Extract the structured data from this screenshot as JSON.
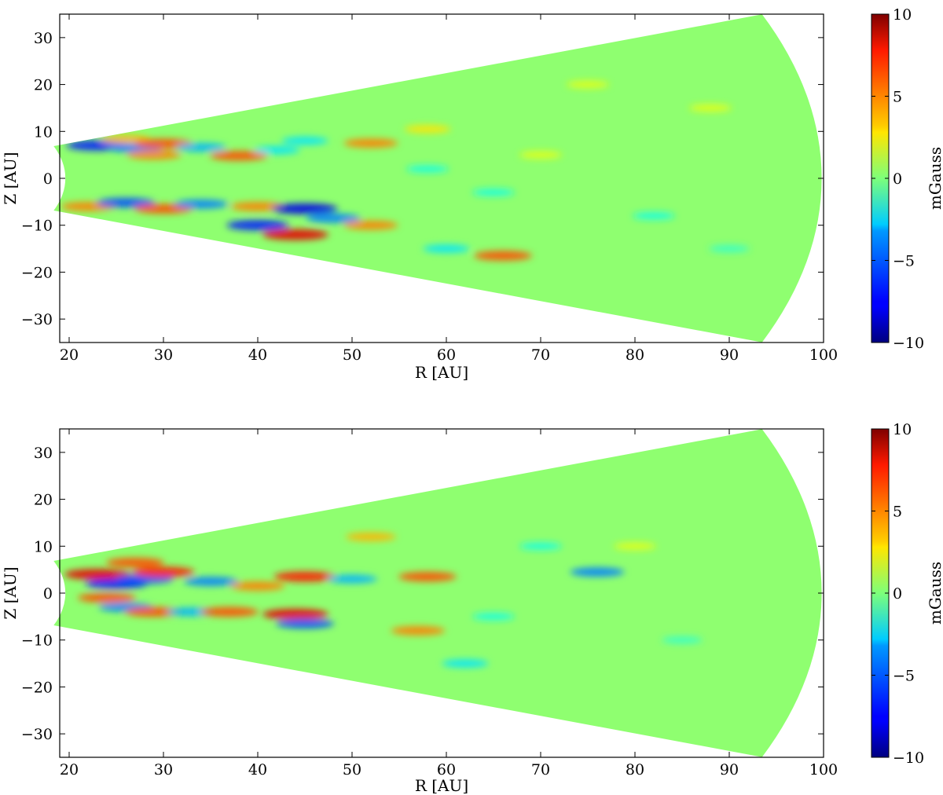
{
  "chart_data": [
    {
      "type": "heatmap",
      "panel": "top",
      "xlabel": "R [AU]",
      "ylabel": "Z [AU]",
      "xlim": [
        19,
        100
      ],
      "ylim": [
        -35,
        35
      ],
      "xticks": [
        20,
        30,
        40,
        50,
        60,
        70,
        80,
        90,
        100
      ],
      "yticks": [
        -30,
        -20,
        -10,
        0,
        10,
        20,
        30
      ],
      "domain": {
        "r_inner_AU": 19.6,
        "r_outer_AU": 99.8,
        "half_opening_angle_deg": 20.5
      },
      "colorbar": {
        "label": "mGauss",
        "range": [
          -10,
          10
        ],
        "ticks": [
          -10,
          -5,
          0,
          5,
          10
        ],
        "colormap": "jet"
      },
      "features": [
        {
          "R": 23,
          "Z": 7.0,
          "B": -7
        },
        {
          "R": 27,
          "Z": 6.5,
          "B": -5
        },
        {
          "R": 26,
          "Z": 8.3,
          "B": 4
        },
        {
          "R": 30,
          "Z": 7.4,
          "B": 6
        },
        {
          "R": 29,
          "Z": 5.0,
          "B": 5
        },
        {
          "R": 34,
          "Z": 6.6,
          "B": -4
        },
        {
          "R": 38,
          "Z": 4.8,
          "B": 6
        },
        {
          "R": 42,
          "Z": 6.0,
          "B": -3
        },
        {
          "R": 45,
          "Z": 8.0,
          "B": -3
        },
        {
          "R": 52,
          "Z": 7.5,
          "B": 5
        },
        {
          "R": 58,
          "Z": 10.5,
          "B": 3
        },
        {
          "R": 22,
          "Z": -6.0,
          "B": 5
        },
        {
          "R": 26,
          "Z": -5.2,
          "B": -6
        },
        {
          "R": 30,
          "Z": -6.5,
          "B": 6
        },
        {
          "R": 34,
          "Z": -5.5,
          "B": -5
        },
        {
          "R": 40,
          "Z": -6.0,
          "B": 5
        },
        {
          "R": 45,
          "Z": -6.5,
          "B": -8
        },
        {
          "R": 40,
          "Z": -10.0,
          "B": -7
        },
        {
          "R": 44,
          "Z": -12.0,
          "B": 8
        },
        {
          "R": 48,
          "Z": -8.5,
          "B": -5
        },
        {
          "R": 52,
          "Z": -10.0,
          "B": 5
        },
        {
          "R": 60,
          "Z": -15.0,
          "B": -3
        },
        {
          "R": 66,
          "Z": -16.5,
          "B": 6
        },
        {
          "R": 58,
          "Z": 2.0,
          "B": -2
        },
        {
          "R": 70,
          "Z": 5.0,
          "B": 2
        },
        {
          "R": 75,
          "Z": 20.0,
          "B": 2
        },
        {
          "R": 82,
          "Z": -8.0,
          "B": -2
        },
        {
          "R": 88,
          "Z": 15.0,
          "B": 2
        },
        {
          "R": 90,
          "Z": -15.0,
          "B": -1.5
        },
        {
          "R": 65,
          "Z": -3.0,
          "B": -2
        }
      ]
    },
    {
      "type": "heatmap",
      "panel": "bottom",
      "xlabel": "R [AU]",
      "ylabel": "Z [AU]",
      "xlim": [
        19,
        100
      ],
      "ylim": [
        -35,
        35
      ],
      "xticks": [
        20,
        30,
        40,
        50,
        60,
        70,
        80,
        90,
        100
      ],
      "yticks": [
        -30,
        -20,
        -10,
        0,
        10,
        20,
        30
      ],
      "domain": {
        "r_inner_AU": 19.6,
        "r_outer_AU": 99.8,
        "half_opening_angle_deg": 20.5
      },
      "colorbar": {
        "label": "mGauss",
        "range": [
          -10,
          10
        ],
        "ticks": [
          -10,
          -5,
          0,
          5,
          10
        ],
        "colormap": "jet"
      },
      "features": [
        {
          "R": 23,
          "Z": 4.0,
          "B": 8
        },
        {
          "R": 25,
          "Z": 2.0,
          "B": -7
        },
        {
          "R": 27,
          "Z": 6.5,
          "B": 6
        },
        {
          "R": 28,
          "Z": 3.0,
          "B": -6
        },
        {
          "R": 30,
          "Z": 4.5,
          "B": 7
        },
        {
          "R": 24,
          "Z": -1.0,
          "B": 6
        },
        {
          "R": 26,
          "Z": -3.0,
          "B": -5
        },
        {
          "R": 29,
          "Z": -4.0,
          "B": 6
        },
        {
          "R": 33,
          "Z": -4.0,
          "B": -4
        },
        {
          "R": 37,
          "Z": -4.0,
          "B": 6
        },
        {
          "R": 44,
          "Z": -4.5,
          "B": 8
        },
        {
          "R": 45,
          "Z": -6.5,
          "B": -6
        },
        {
          "R": 40,
          "Z": 1.5,
          "B": 5
        },
        {
          "R": 45,
          "Z": 3.5,
          "B": 7
        },
        {
          "R": 35,
          "Z": 2.5,
          "B": -5
        },
        {
          "R": 50,
          "Z": 3.0,
          "B": -4
        },
        {
          "R": 52,
          "Z": 12.0,
          "B": 4
        },
        {
          "R": 58,
          "Z": 3.5,
          "B": 6
        },
        {
          "R": 57,
          "Z": -8.0,
          "B": 5
        },
        {
          "R": 62,
          "Z": -15.0,
          "B": -3
        },
        {
          "R": 76,
          "Z": 4.5,
          "B": -5
        },
        {
          "R": 70,
          "Z": 10.0,
          "B": -2
        },
        {
          "R": 65,
          "Z": -5.0,
          "B": -2
        },
        {
          "R": 80,
          "Z": 10.0,
          "B": 2
        },
        {
          "R": 85,
          "Z": -10.0,
          "B": -1.5
        }
      ]
    }
  ]
}
